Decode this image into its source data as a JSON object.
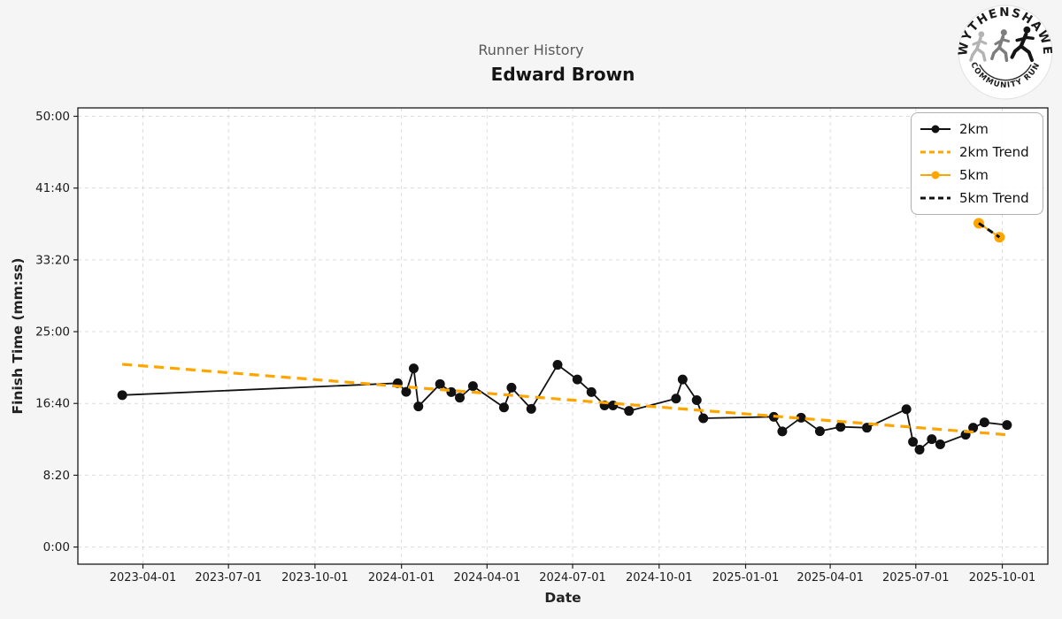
{
  "header": {
    "title": "Runner History",
    "subtitle": "Edward Brown"
  },
  "logo": {
    "top_text": "WYTHENSHAWE",
    "bottom_text": "COMMUNITY RUN"
  },
  "colors": {
    "accent_orange": "#FFA500",
    "series_black": "#111111",
    "figure_bg": "#f5f5f6",
    "plot_bg": "#ffffff",
    "gridline": "#dcdcdc"
  },
  "chart_data": {
    "type": "line",
    "title": "Runner History",
    "subtitle": "Edward Brown",
    "xlabel": "Date",
    "ylabel": "Finish Time (mm:ss)",
    "grid": true,
    "legend_position": "upper right",
    "x_tick_labels": [
      "2023-04-01",
      "2023-07-01",
      "2023-10-01",
      "2024-01-01",
      "2024-04-01",
      "2024-07-01",
      "2024-10-01",
      "2025-01-01",
      "2025-04-01",
      "2025-07-01",
      "2025-10-01"
    ],
    "y_tick_labels": [
      "0:00",
      "8:20",
      "16:40",
      "25:00",
      "33:20",
      "41:40",
      "50:00"
    ],
    "xlim": [
      "2023-01-25",
      "2025-11-16"
    ],
    "ylim_mmss": [
      "-1:55",
      "51:00"
    ],
    "series": [
      {
        "name": "2km",
        "color": "#111111",
        "dash": null,
        "width": 1.8,
        "markers": true,
        "marker_r": 5.5,
        "points": [
          [
            "2023-03-10",
            "17:38"
          ],
          [
            "2023-12-28",
            "19:01"
          ],
          [
            "2024-01-06",
            "18:01"
          ],
          [
            "2024-01-14",
            "20:44"
          ],
          [
            "2024-01-19",
            "16:19"
          ],
          [
            "2024-02-11",
            "18:55"
          ],
          [
            "2024-02-23",
            "17:59"
          ],
          [
            "2024-03-03",
            "17:20"
          ],
          [
            "2024-03-17",
            "18:41"
          ],
          [
            "2024-04-19",
            "16:12"
          ],
          [
            "2024-04-27",
            "18:30"
          ],
          [
            "2024-05-18",
            "16:02"
          ],
          [
            "2024-06-15",
            "21:09"
          ],
          [
            "2024-07-06",
            "19:27"
          ],
          [
            "2024-07-21",
            "17:59"
          ],
          [
            "2024-08-04",
            "16:26"
          ],
          [
            "2024-08-13",
            "16:26"
          ],
          [
            "2024-08-30",
            "15:48"
          ],
          [
            "2024-10-19",
            "17:14"
          ],
          [
            "2024-10-26",
            "19:27"
          ],
          [
            "2024-11-10",
            "17:03"
          ],
          [
            "2024-11-17",
            "14:57"
          ],
          [
            "2025-01-31",
            "15:07"
          ],
          [
            "2025-02-09",
            "13:25"
          ],
          [
            "2025-03-01",
            "15:01"
          ],
          [
            "2025-03-21",
            "13:27"
          ],
          [
            "2025-04-12",
            "13:57"
          ],
          [
            "2025-05-10",
            "13:51"
          ],
          [
            "2025-06-21",
            "16:00"
          ],
          [
            "2025-06-28",
            "12:13"
          ],
          [
            "2025-07-05",
            "11:18"
          ],
          [
            "2025-07-18",
            "12:31"
          ],
          [
            "2025-07-27",
            "11:55"
          ],
          [
            "2025-08-23",
            "13:02"
          ],
          [
            "2025-08-31",
            "13:51"
          ],
          [
            "2025-09-12",
            "14:28"
          ],
          [
            "2025-10-06",
            "14:10"
          ]
        ]
      },
      {
        "name": "2km Trend",
        "color": "#FFA500",
        "dash": "11 7",
        "width": 3.2,
        "markers": false,
        "points": [
          [
            "2023-03-10",
            "21:13"
          ],
          [
            "2025-10-06",
            "13:02"
          ]
        ]
      },
      {
        "name": "5km",
        "color": "#FFA500",
        "dash": null,
        "width": 2,
        "markers": true,
        "marker_r": 6,
        "points": [
          [
            "2025-09-06",
            "37:35"
          ],
          [
            "2025-09-28",
            "35:58"
          ]
        ]
      },
      {
        "name": "5km Trend",
        "color": "#111111",
        "dash": "7 5",
        "width": 3,
        "markers": false,
        "points": [
          [
            "2025-09-06",
            "37:35"
          ],
          [
            "2025-09-28",
            "35:58"
          ]
        ]
      }
    ]
  }
}
